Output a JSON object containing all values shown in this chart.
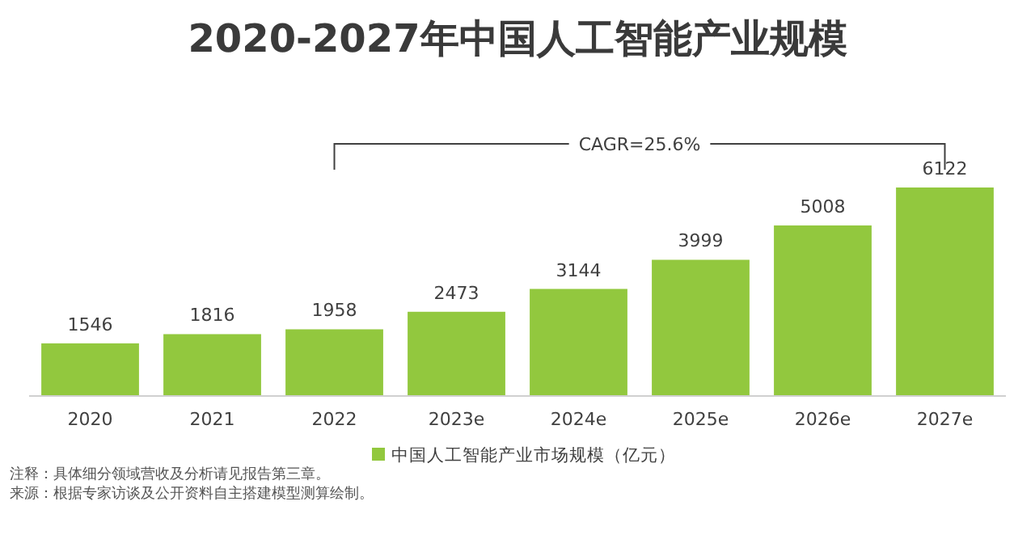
{
  "chart_data": {
    "type": "bar",
    "title": "2020-2027年中国人工智能产业规模",
    "categories": [
      "2020",
      "2021",
      "2022",
      "2023e",
      "2024e",
      "2025e",
      "2026e",
      "2027e"
    ],
    "series": [
      {
        "name": "中国人工智能产业市场规模（亿元）",
        "color": "#92c83e",
        "values": [
          1546,
          1816,
          1958,
          2473,
          3144,
          3999,
          5008,
          6122
        ]
      }
    ],
    "data_labels": true,
    "legend": "bottom",
    "annotations": [
      "CAGR=25.6%",
      "注释：具体细分领域营收及分析请见报告第三章。",
      "来源：根据专家访谈及公开资料自主搭建模型测算绘制。"
    ]
  }
}
